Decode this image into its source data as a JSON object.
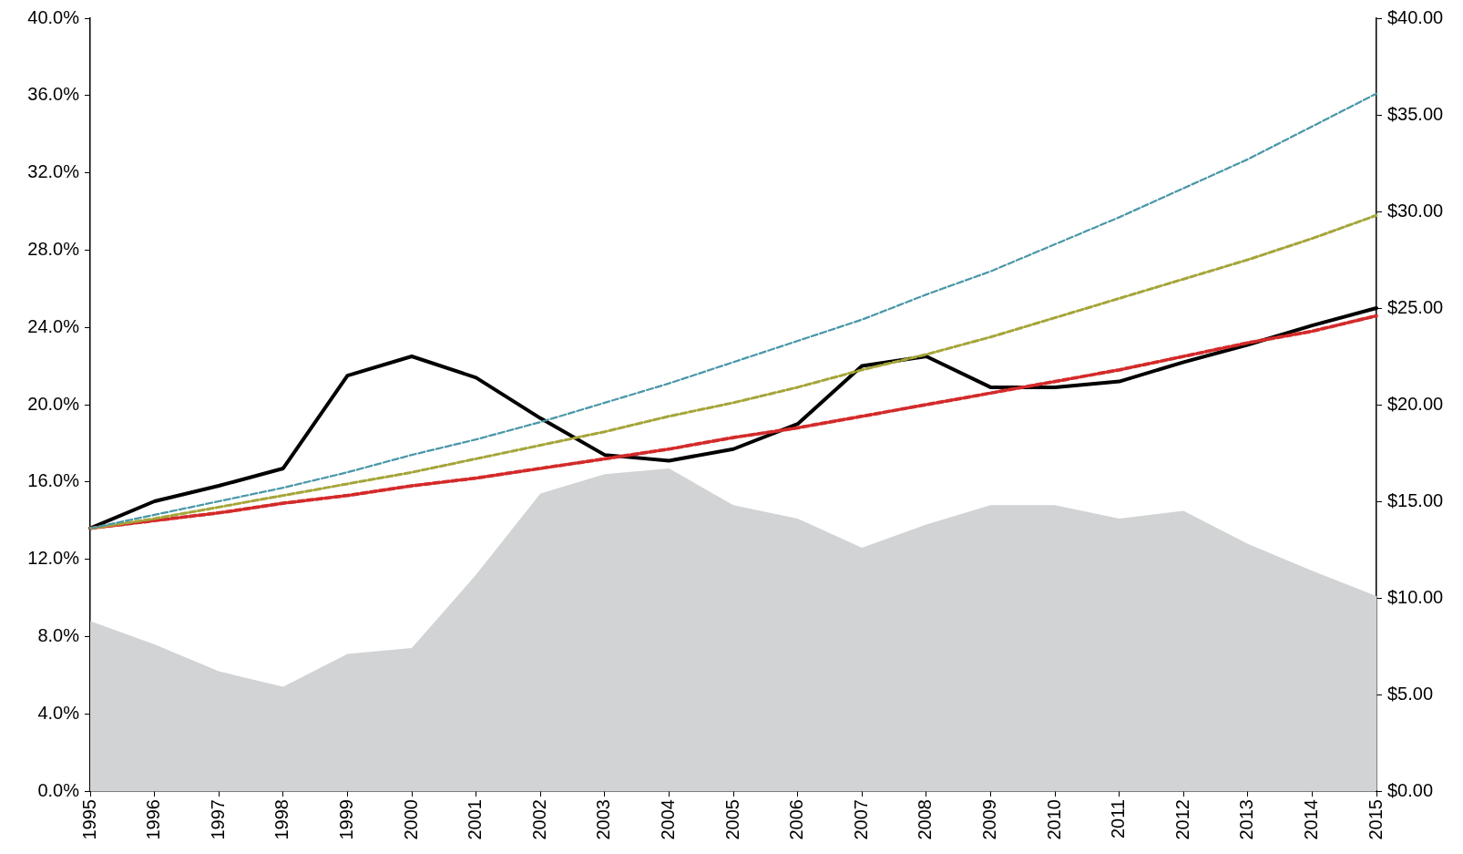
{
  "chart_data": {
    "type": "line",
    "categories": [
      "1995",
      "1996",
      "1997",
      "1998",
      "1999",
      "2000",
      "2001",
      "2002",
      "2003",
      "2004",
      "2005",
      "2006",
      "2007",
      "2008",
      "2009",
      "2010",
      "2011",
      "2012",
      "2013",
      "2014",
      "2015"
    ],
    "series": [
      {
        "type": "area",
        "color": "#d1d3d4",
        "values": [
          8.8,
          7.6,
          6.2,
          5.4,
          7.1,
          7.4,
          11.2,
          15.4,
          16.4,
          16.7,
          14.8,
          14.1,
          12.6,
          13.8,
          14.8,
          14.8,
          14.1,
          14.5,
          12.8,
          11.4,
          10.1
        ]
      },
      {
        "type": "line",
        "color": "#4a97a8",
        "line_style": "dashed",
        "values": [
          13.6,
          14.3,
          15.0,
          15.7,
          16.5,
          17.4,
          18.2,
          19.1,
          20.1,
          21.1,
          22.2,
          23.3,
          24.4,
          25.7,
          26.9,
          28.3,
          29.7,
          31.2,
          32.7,
          34.4,
          36.1
        ]
      },
      {
        "type": "line",
        "color": "#a5a53a",
        "line_style": "dashed",
        "values": [
          13.6,
          14.1,
          14.7,
          15.3,
          15.9,
          16.5,
          17.2,
          17.9,
          18.6,
          19.4,
          20.1,
          20.9,
          21.8,
          22.6,
          23.5,
          24.5,
          25.5,
          26.5,
          27.5,
          28.6,
          29.8
        ]
      },
      {
        "type": "line",
        "color": "#d42a2a",
        "line_style": "dashed",
        "values": [
          13.6,
          14.0,
          14.4,
          14.9,
          15.3,
          15.8,
          16.2,
          16.7,
          17.2,
          17.7,
          18.3,
          18.8,
          19.4,
          20.0,
          20.6,
          21.2,
          21.8,
          22.5,
          23.2,
          23.8,
          24.6
        ]
      },
      {
        "type": "line",
        "color": "#000000",
        "line_style": "solid",
        "values": [
          13.6,
          15.0,
          15.8,
          16.7,
          21.5,
          22.5,
          21.4,
          19.3,
          17.4,
          17.1,
          17.7,
          19.0,
          22.0,
          22.5,
          20.9,
          20.9,
          21.2,
          22.2,
          23.1,
          24.1,
          25.0
        ]
      }
    ],
    "ylim": [
      0,
      40
    ],
    "yticks": [
      {
        "value": 0,
        "label": "0.0%"
      },
      {
        "value": 4,
        "label": "4.0%"
      },
      {
        "value": 8,
        "label": "8.0%"
      },
      {
        "value": 12,
        "label": "12.0%"
      },
      {
        "value": 16,
        "label": "16.0%"
      },
      {
        "value": 20,
        "label": "20.0%"
      },
      {
        "value": 24,
        "label": "24.0%"
      },
      {
        "value": 28,
        "label": "28.0%"
      },
      {
        "value": 32,
        "label": "32.0%"
      },
      {
        "value": 36,
        "label": "36.0%"
      },
      {
        "value": 40,
        "label": "40.0%"
      }
    ],
    "y2lim": [
      0,
      40
    ],
    "y2ticks": [
      {
        "value": 0,
        "label": "$0.00"
      },
      {
        "value": 5,
        "label": "$5.00"
      },
      {
        "value": 10,
        "label": "$10.00"
      },
      {
        "value": 15,
        "label": "$15.00"
      },
      {
        "value": 20,
        "label": "$20.00"
      },
      {
        "value": 25,
        "label": "$25.00"
      },
      {
        "value": 30,
        "label": "$30.00"
      },
      {
        "value": 35,
        "label": "$35.00"
      },
      {
        "value": 40,
        "label": "$40.00"
      }
    ],
    "marker": "none",
    "grid": false,
    "legend": false
  }
}
